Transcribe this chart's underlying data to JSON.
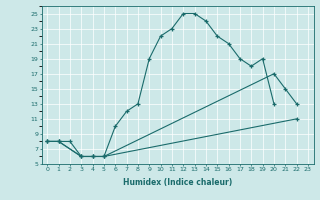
{
  "xlabel": "Humidex (Indice chaleur)",
  "xlim": [
    -0.5,
    23.5
  ],
  "ylim": [
    5,
    26
  ],
  "xticks": [
    0,
    1,
    2,
    3,
    4,
    5,
    6,
    7,
    8,
    9,
    10,
    11,
    12,
    13,
    14,
    15,
    16,
    17,
    18,
    19,
    20,
    21,
    22,
    23
  ],
  "yticks": [
    5,
    7,
    9,
    11,
    13,
    15,
    17,
    19,
    21,
    23,
    25
  ],
  "bg_color": "#cde8e8",
  "line_color": "#1a6b6b",
  "grid_color": "#ffffff",
  "curve1_x": [
    0,
    1,
    2,
    3,
    4,
    5,
    6,
    7,
    8,
    9,
    10,
    11,
    12,
    13,
    14,
    15,
    16,
    17,
    18,
    19,
    20
  ],
  "curve1_y": [
    8,
    8,
    8,
    6,
    6,
    6,
    10,
    12,
    13,
    19,
    22,
    23,
    25,
    25,
    24,
    22,
    21,
    19,
    18,
    19,
    13
  ],
  "curve2_x": [
    0,
    1,
    3,
    4,
    5,
    20,
    21,
    22
  ],
  "curve2_y": [
    8,
    8,
    6,
    6,
    6,
    17,
    15,
    13
  ],
  "curve3_x": [
    0,
    1,
    3,
    4,
    5,
    22
  ],
  "curve3_y": [
    8,
    8,
    6,
    6,
    6,
    11
  ]
}
